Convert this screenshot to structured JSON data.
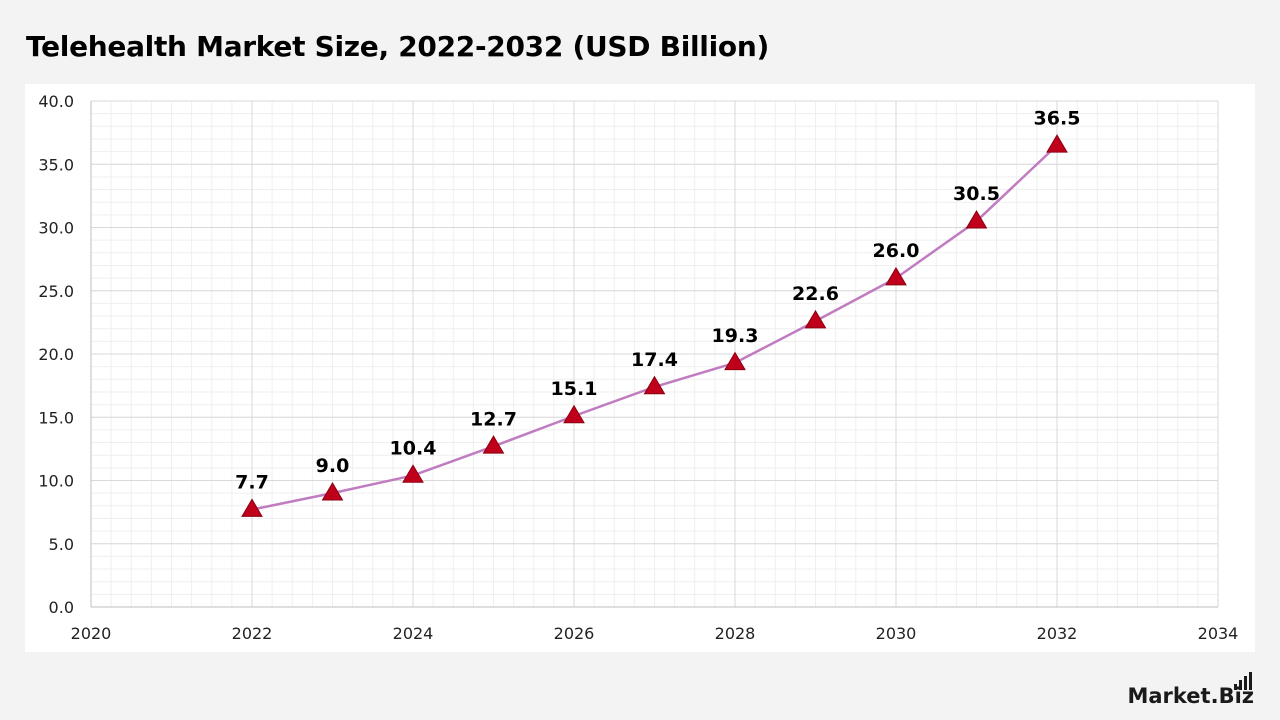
{
  "title": "Telehealth Market Size, 2022-2032 (USD Billion)",
  "brand": {
    "name": "Market.Biz",
    "icon": "signal-bars-icon"
  },
  "colors": {
    "line": "#c07cc0",
    "marker": "#c0001a",
    "grid_major": "#d9d9d9",
    "grid_minor": "#efefef"
  },
  "chart_data": {
    "type": "line",
    "title": "Telehealth Market Size, 2022-2032 (USD Billion)",
    "xlabel": "",
    "ylabel": "",
    "xlim": [
      2020,
      2034
    ],
    "ylim": [
      0,
      40
    ],
    "x_ticks": [
      2020,
      2022,
      2024,
      2026,
      2028,
      2030,
      2032,
      2034
    ],
    "y_ticks": [
      0,
      5,
      10,
      15,
      20,
      25,
      30,
      35,
      40
    ],
    "y_tick_labels": [
      "0.0",
      "5.0",
      "10.0",
      "15.0",
      "20.0",
      "25.0",
      "30.0",
      "35.0",
      "40.0"
    ],
    "grid": true,
    "marker": "triangle",
    "series": [
      {
        "name": "Telehealth Market Size",
        "x": [
          2022,
          2023,
          2024,
          2025,
          2026,
          2027,
          2028,
          2029,
          2030,
          2031,
          2032
        ],
        "values": [
          7.7,
          9.0,
          10.4,
          12.7,
          15.1,
          17.4,
          19.3,
          22.6,
          26.0,
          30.5,
          36.5
        ],
        "labels": [
          "7.7",
          "9.0",
          "10.4",
          "12.7",
          "15.1",
          "17.4",
          "19.3",
          "22.6",
          "26.0",
          "30.5",
          "36.5"
        ]
      }
    ]
  }
}
